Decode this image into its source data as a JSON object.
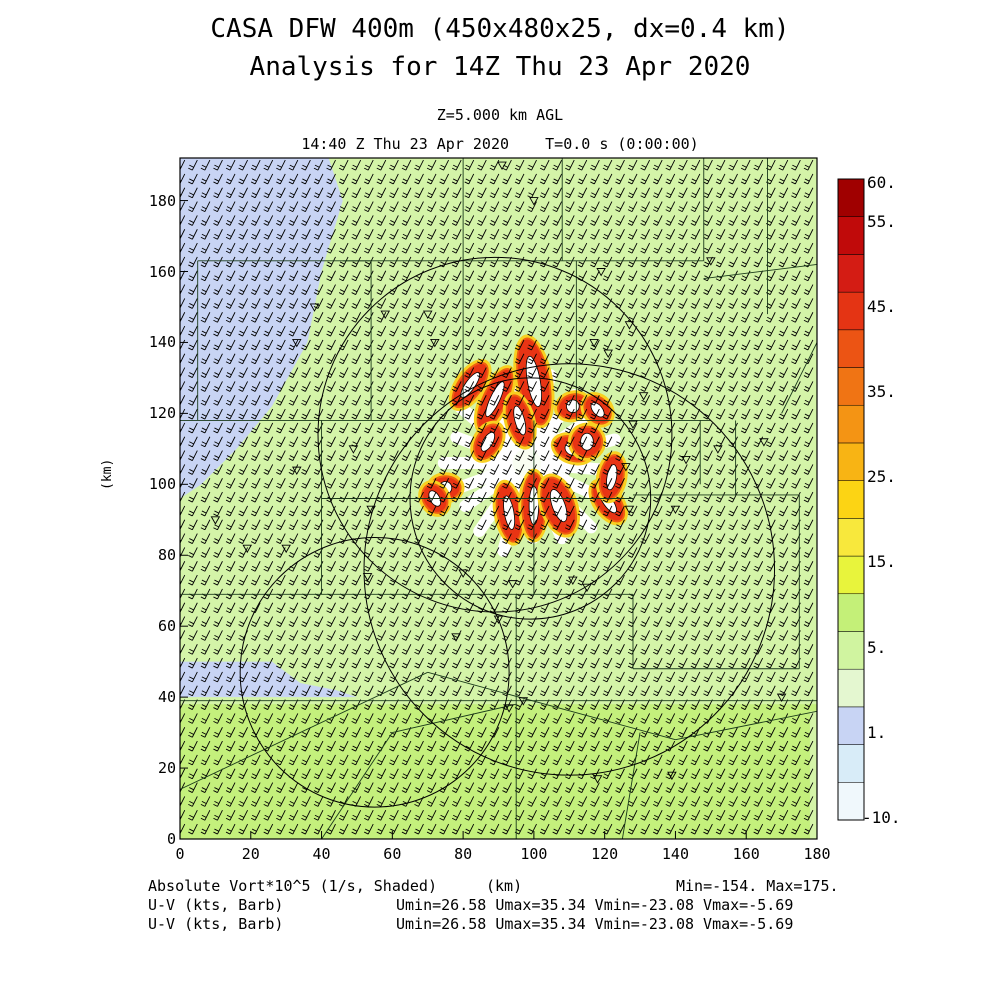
{
  "header": {
    "title_line1": "CASA DFW 400m (450x480x25, dx=0.4 km)",
    "title_line2": "Analysis for 14Z Thu 23 Apr 2020",
    "level": "Z=5.000 km AGL",
    "valid_time": "14:40 Z Thu 23 Apr 2020    T=0.0 s (0:00:00)"
  },
  "chart_data": {
    "type": "heatmap",
    "title": "CASA DFW 400m (450x480x25, dx=0.4 km)",
    "xlabel": "(km)",
    "ylabel": "(km)",
    "xlim": [
      0,
      180
    ],
    "ylim": [
      0,
      192
    ],
    "x_ticks": [
      0,
      20,
      40,
      60,
      80,
      100,
      120,
      140,
      160,
      180
    ],
    "y_ticks": [
      0,
      20,
      40,
      60,
      80,
      100,
      120,
      140,
      160,
      180
    ],
    "x_tick_labels": [
      "0",
      "20",
      "40",
      "60",
      "80",
      "100",
      "120",
      "140",
      "160",
      "180"
    ],
    "y_tick_labels": [
      "0",
      "20",
      "40",
      "60",
      "80",
      "100",
      "120",
      "140",
      "160",
      "180"
    ],
    "colorbar": {
      "labels": [
        "60.",
        "55.",
        "45.",
        "35.",
        "25.",
        "15.",
        "5.",
        "1.",
        "-10."
      ],
      "colors": [
        "#f0f8fc",
        "#d8ecf8",
        "#c8d4f4",
        "#e4f7d0",
        "#d0f4a0",
        "#c4f078",
        "#e8f43c",
        "#f8e83c",
        "#fcd414",
        "#f8b414",
        "#f49414",
        "#f07414",
        "#ec5414",
        "#e43414",
        "#d41c14",
        "#c00a0a",
        "#a00000"
      ]
    },
    "field_description_label": "Absolute Vort*10^5 (1/s, Shaded)",
    "min_label": "Min=-154. Max=175.",
    "barb_label_1": "U-V (kts, Barb)",
    "barb_label_2": "U-V (kts, Barb)",
    "barb_stats_1": "Umin=26.58 Umax=35.34 Vmin=-23.08 Vmax=-5.69",
    "barb_stats_2": "Umin=26.58 Umax=35.34 Vmin=-23.08 Vmax=-5.69",
    "bands": {
      "background": "#d4f4a8",
      "blue_region": "#c8d4f4",
      "south_band": "#c4f07c",
      "spokes": "#ffffff",
      "hot": "#e83414"
    },
    "radar_ranges_center_km": [
      {
        "cx": 89,
        "cy": 114,
        "r": 50
      },
      {
        "cx": 99,
        "cy": 96,
        "r": 34
      },
      {
        "cx": 110,
        "cy": 76,
        "r": 58
      },
      {
        "cx": 55,
        "cy": 47,
        "r": 38
      }
    ],
    "color_scale": [
      -10,
      1,
      5,
      15,
      25,
      35,
      45,
      55,
      60
    ]
  },
  "footer": {
    "left1": "Absolute Vort*10^5 (1/s, Shaded)",
    "center1": "(km)",
    "right1": "Min=-154. Max=175.",
    "left2": "U-V (kts, Barb)",
    "right2": "Umin=26.58 Umax=35.34 Vmin=-23.08 Vmax=-5.69",
    "left3": "U-V (kts, Barb)",
    "right3": "Umin=26.58 Umax=35.34 Vmin=-23.08 Vmax=-5.69"
  }
}
